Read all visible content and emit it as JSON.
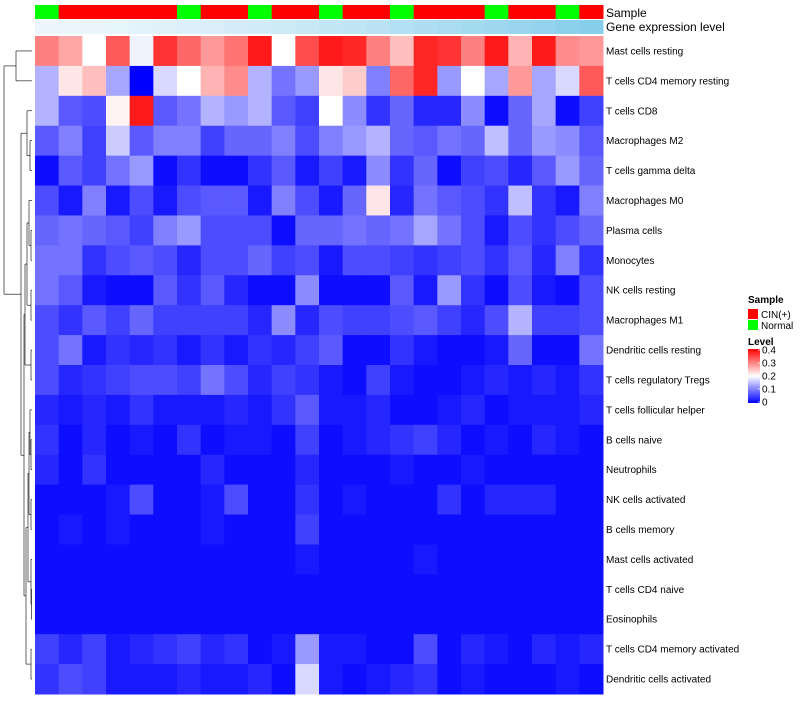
{
  "chart_data": {
    "type": "heatmap",
    "title": "",
    "annotations": {
      "sample_label": "Sample",
      "gene_label": "Gene expression level"
    },
    "sample_groups": [
      "Normal",
      "CIN(+)",
      "CIN(+)",
      "CIN(+)",
      "CIN(+)",
      "CIN(+)",
      "Normal",
      "CIN(+)",
      "CIN(+)",
      "Normal",
      "CIN(+)",
      "CIN(+)",
      "Normal",
      "CIN(+)",
      "CIN(+)",
      "Normal",
      "CIN(+)",
      "CIN(+)",
      "CIN(+)",
      "Normal",
      "CIN(+)",
      "CIN(+)",
      "Normal",
      "CIN(+)"
    ],
    "rows": [
      "Mast cells resting",
      "T cells CD4 memory resting",
      "T cells CD8",
      "Macrophages M2",
      "T cells gamma delta",
      "Macrophages M0",
      "Plasma cells",
      "Monocytes",
      "NK cells resting",
      "Macrophages M1",
      "Dendritic cells resting",
      "T cells regulatory  Tregs",
      "T cells follicular helper",
      "B cells naive",
      "Neutrophils",
      "NK cells activated",
      "B cells memory",
      "Mast cells activated",
      "T cells CD4 naive",
      "Eosinophils",
      "T cells CD4 memory activated",
      "Dendritic cells activated"
    ],
    "values": [
      [
        0.3,
        0.27,
        0.2,
        0.33,
        0.19,
        0.36,
        0.32,
        0.28,
        0.31,
        0.38,
        0.2,
        0.34,
        0.38,
        0.37,
        0.3,
        0.25,
        0.37,
        0.36,
        0.3,
        0.38,
        0.26,
        0.38,
        0.29,
        0.28
      ],
      [
        0.14,
        0.22,
        0.25,
        0.13,
        0.0,
        0.17,
        0.2,
        0.26,
        0.29,
        0.14,
        0.09,
        0.12,
        0.22,
        0.24,
        0.1,
        0.32,
        0.37,
        0.12,
        0.2,
        0.13,
        0.28,
        0.13,
        0.17,
        0.33
      ],
      [
        0.14,
        0.07,
        0.06,
        0.21,
        0.38,
        0.07,
        0.09,
        0.14,
        0.12,
        0.14,
        0.07,
        0.05,
        0.2,
        0.11,
        0.04,
        0.08,
        0.03,
        0.03,
        0.11,
        0.01,
        0.08,
        0.13,
        0.01,
        0.05
      ],
      [
        0.07,
        0.1,
        0.05,
        0.16,
        0.07,
        0.1,
        0.1,
        0.05,
        0.08,
        0.08,
        0.1,
        0.06,
        0.1,
        0.12,
        0.14,
        0.08,
        0.07,
        0.09,
        0.08,
        0.15,
        0.08,
        0.12,
        0.11,
        0.07
      ],
      [
        0.01,
        0.07,
        0.05,
        0.09,
        0.12,
        0.01,
        0.04,
        0.01,
        0.01,
        0.04,
        0.07,
        0.02,
        0.05,
        0.02,
        0.11,
        0.04,
        0.08,
        0.01,
        0.05,
        0.06,
        0.03,
        0.07,
        0.12,
        0.08
      ],
      [
        0.06,
        0.02,
        0.1,
        0.02,
        0.06,
        0.02,
        0.06,
        0.07,
        0.07,
        0.02,
        0.1,
        0.06,
        0.02,
        0.08,
        0.22,
        0.03,
        0.09,
        0.07,
        0.06,
        0.04,
        0.15,
        0.04,
        0.02,
        0.1
      ],
      [
        0.08,
        0.09,
        0.08,
        0.07,
        0.05,
        0.1,
        0.12,
        0.06,
        0.06,
        0.06,
        0.01,
        0.08,
        0.08,
        0.09,
        0.08,
        0.09,
        0.13,
        0.09,
        0.06,
        0.02,
        0.06,
        0.04,
        0.06,
        0.08
      ],
      [
        0.09,
        0.09,
        0.04,
        0.06,
        0.07,
        0.06,
        0.03,
        0.06,
        0.06,
        0.08,
        0.05,
        0.06,
        0.02,
        0.06,
        0.06,
        0.05,
        0.04,
        0.05,
        0.06,
        0.04,
        0.07,
        0.03,
        0.1,
        0.04
      ],
      [
        0.09,
        0.07,
        0.02,
        0.01,
        0.01,
        0.07,
        0.04,
        0.07,
        0.03,
        0.01,
        0.01,
        0.11,
        0.01,
        0.01,
        0.01,
        0.07,
        0.02,
        0.12,
        0.04,
        0.01,
        0.06,
        0.02,
        0.01,
        0.06
      ],
      [
        0.06,
        0.04,
        0.07,
        0.05,
        0.08,
        0.05,
        0.05,
        0.05,
        0.05,
        0.03,
        0.11,
        0.03,
        0.06,
        0.05,
        0.05,
        0.06,
        0.07,
        0.05,
        0.03,
        0.06,
        0.14,
        0.05,
        0.05,
        0.06
      ],
      [
        0.06,
        0.09,
        0.02,
        0.04,
        0.03,
        0.04,
        0.02,
        0.04,
        0.02,
        0.04,
        0.03,
        0.05,
        0.07,
        0.01,
        0.01,
        0.04,
        0.02,
        0.01,
        0.01,
        0.02,
        0.08,
        0.01,
        0.01,
        0.09
      ],
      [
        0.06,
        0.03,
        0.04,
        0.05,
        0.06,
        0.06,
        0.05,
        0.09,
        0.06,
        0.03,
        0.05,
        0.04,
        0.02,
        0.01,
        0.05,
        0.02,
        0.01,
        0.01,
        0.02,
        0.03,
        0.02,
        0.03,
        0.02,
        0.04
      ],
      [
        0.03,
        0.02,
        0.03,
        0.02,
        0.04,
        0.02,
        0.02,
        0.02,
        0.03,
        0.02,
        0.04,
        0.07,
        0.02,
        0.02,
        0.03,
        0.01,
        0.01,
        0.02,
        0.03,
        0.01,
        0.02,
        0.02,
        0.02,
        0.03
      ],
      [
        0.04,
        0.01,
        0.03,
        0.01,
        0.02,
        0.01,
        0.04,
        0.01,
        0.02,
        0.02,
        0.01,
        0.05,
        0.01,
        0.02,
        0.03,
        0.04,
        0.05,
        0.03,
        0.01,
        0.02,
        0.01,
        0.03,
        0.02,
        0.01
      ],
      [
        0.03,
        0.01,
        0.04,
        0.01,
        0.01,
        0.01,
        0.01,
        0.03,
        0.01,
        0.01,
        0.01,
        0.03,
        0.01,
        0.01,
        0.01,
        0.02,
        0.01,
        0.01,
        0.02,
        0.01,
        0.01,
        0.01,
        0.01,
        0.01
      ],
      [
        0.01,
        0.01,
        0.01,
        0.02,
        0.06,
        0.01,
        0.01,
        0.02,
        0.06,
        0.01,
        0.01,
        0.04,
        0.01,
        0.02,
        0.01,
        0.01,
        0.01,
        0.04,
        0.01,
        0.03,
        0.03,
        0.03,
        0.01,
        0.01
      ],
      [
        0.01,
        0.02,
        0.01,
        0.02,
        0.01,
        0.01,
        0.01,
        0.02,
        0.01,
        0.01,
        0.01,
        0.05,
        0.01,
        0.01,
        0.01,
        0.01,
        0.01,
        0.01,
        0.01,
        0.01,
        0.01,
        0.01,
        0.01,
        0.01
      ],
      [
        0.01,
        0.01,
        0.01,
        0.01,
        0.01,
        0.01,
        0.01,
        0.01,
        0.01,
        0.01,
        0.01,
        0.02,
        0.01,
        0.01,
        0.01,
        0.01,
        0.02,
        0.01,
        0.01,
        0.01,
        0.01,
        0.01,
        0.01,
        0.01
      ],
      [
        0.01,
        0.01,
        0.01,
        0.01,
        0.01,
        0.01,
        0.01,
        0.01,
        0.01,
        0.01,
        0.01,
        0.01,
        0.01,
        0.01,
        0.01,
        0.01,
        0.01,
        0.01,
        0.01,
        0.01,
        0.01,
        0.01,
        0.01,
        0.01
      ],
      [
        0.01,
        0.01,
        0.01,
        0.01,
        0.01,
        0.01,
        0.01,
        0.01,
        0.01,
        0.01,
        0.01,
        0.01,
        0.01,
        0.01,
        0.01,
        0.01,
        0.01,
        0.01,
        0.01,
        0.01,
        0.01,
        0.01,
        0.01,
        0.01
      ],
      [
        0.05,
        0.03,
        0.05,
        0.02,
        0.03,
        0.04,
        0.05,
        0.03,
        0.04,
        0.01,
        0.02,
        0.12,
        0.02,
        0.02,
        0.01,
        0.01,
        0.06,
        0.01,
        0.03,
        0.02,
        0.01,
        0.03,
        0.02,
        0.03
      ],
      [
        0.04,
        0.06,
        0.05,
        0.02,
        0.02,
        0.02,
        0.03,
        0.02,
        0.02,
        0.03,
        0.01,
        0.17,
        0.02,
        0.01,
        0.02,
        0.03,
        0.04,
        0.01,
        0.02,
        0.01,
        0.01,
        0.01,
        0.02,
        0.01
      ]
    ],
    "color_scale": {
      "min": 0,
      "max": 0.4,
      "low": "#0000ff",
      "mid": "#ffffff",
      "high": "#ff0000"
    },
    "group_colors": {
      "CIN(+)": "#ff0000",
      "Normal": "#00ff00"
    },
    "gene_bar_color": "#87ceeb",
    "legend": {
      "sample_title": "Sample",
      "sample_entries": [
        "CIN(+)",
        "Normal"
      ],
      "level_title": "Level",
      "level_ticks": [
        "0.4",
        "0.3",
        "0.2",
        "0.1",
        "0"
      ],
      "level_tick_values": [
        0.4,
        0.3,
        0.2,
        0.1,
        0
      ],
      "placement": "right"
    }
  }
}
